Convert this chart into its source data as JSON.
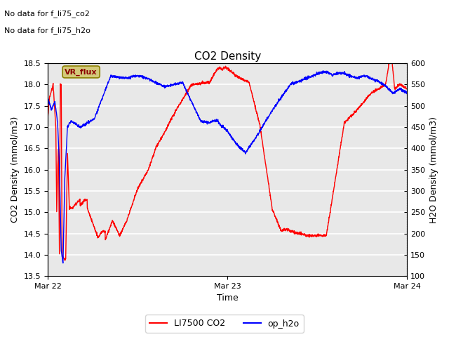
{
  "title": "CO2 Density",
  "xlabel": "Time",
  "ylabel_left": "CO2 Density (mmol/m3)",
  "ylabel_right": "H2O Density (mmol/m3)",
  "annotation_line1": "No data for f_li75_co2",
  "annotation_line2": "No data for f_li75_h2o",
  "vr_flux_label": "VR_flux",
  "legend_entries": [
    "LI7500 CO2",
    "op_h2o"
  ],
  "xlim": [
    0,
    2.0
  ],
  "ylim_left": [
    13.5,
    18.5
  ],
  "ylim_right": [
    100,
    600
  ],
  "xticks": [
    0,
    1.0,
    2.0
  ],
  "xtick_labels": [
    "Mar 22",
    "Mar 23",
    "Mar 24"
  ],
  "yticks_left": [
    13.5,
    14.0,
    14.5,
    15.0,
    15.5,
    16.0,
    16.5,
    17.0,
    17.5,
    18.0,
    18.5
  ],
  "yticks_right": [
    100,
    150,
    200,
    250,
    300,
    350,
    400,
    450,
    500,
    550,
    600
  ],
  "background_color": "#e8e8e8",
  "grid_color": "white",
  "figsize": [
    6.4,
    4.8
  ],
  "dpi": 100
}
